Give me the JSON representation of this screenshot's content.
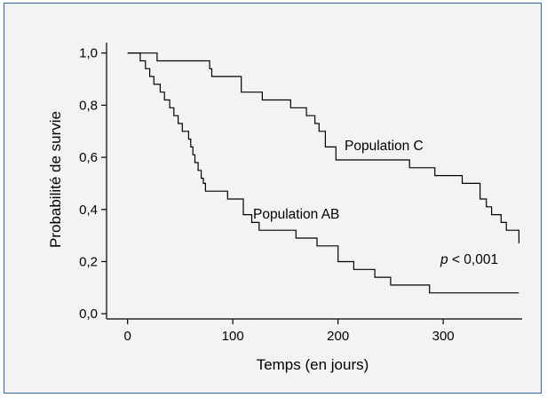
{
  "chart_data": {
    "type": "line",
    "subtype": "kaplan-meier step curve",
    "title": "",
    "xlabel": "Temps (en jours)",
    "ylabel": "Probabilité de survie",
    "xlim": [
      -20,
      375
    ],
    "ylim": [
      -0.02,
      1.04
    ],
    "x_ticks": [
      0,
      100,
      200,
      300
    ],
    "x_tick_labels": [
      "0",
      "100",
      "200",
      "300"
    ],
    "y_ticks": [
      0.0,
      0.2,
      0.4,
      0.6,
      0.8,
      1.0
    ],
    "y_tick_labels": [
      "0,0",
      "0,2",
      "0,4",
      "0,6",
      "0,8",
      "1,0"
    ],
    "grid": false,
    "series": [
      {
        "name": "Population C",
        "color": "#000000",
        "x": [
          0,
          28,
          78,
          80,
          108,
          128,
          155,
          170,
          178,
          182,
          188,
          198,
          260,
          268,
          292,
          318,
          335,
          341,
          346,
          355,
          360,
          372
        ],
        "y": [
          1.0,
          0.97,
          0.94,
          0.91,
          0.85,
          0.82,
          0.79,
          0.76,
          0.73,
          0.7,
          0.64,
          0.59,
          0.59,
          0.56,
          0.53,
          0.5,
          0.44,
          0.41,
          0.38,
          0.35,
          0.32,
          0.27
        ]
      },
      {
        "name": "Population AB",
        "color": "#000000",
        "x": [
          0,
          12,
          17,
          21,
          25,
          31,
          35,
          40,
          44,
          48,
          52,
          58,
          60,
          62,
          64,
          67,
          70,
          72,
          74,
          95,
          110,
          118,
          125,
          135,
          160,
          180,
          200,
          215,
          235,
          250,
          287,
          372
        ],
        "y": [
          1.0,
          0.97,
          0.94,
          0.91,
          0.88,
          0.85,
          0.82,
          0.79,
          0.76,
          0.73,
          0.7,
          0.67,
          0.64,
          0.61,
          0.58,
          0.55,
          0.52,
          0.5,
          0.47,
          0.44,
          0.38,
          0.35,
          0.32,
          0.32,
          0.29,
          0.26,
          0.2,
          0.17,
          0.14,
          0.11,
          0.08,
          0.08
        ]
      }
    ],
    "annotations": {
      "label_c": "Population C",
      "label_ab": "Population AB",
      "p_symbol": "p",
      "p_rest": " < 0,001"
    }
  }
}
